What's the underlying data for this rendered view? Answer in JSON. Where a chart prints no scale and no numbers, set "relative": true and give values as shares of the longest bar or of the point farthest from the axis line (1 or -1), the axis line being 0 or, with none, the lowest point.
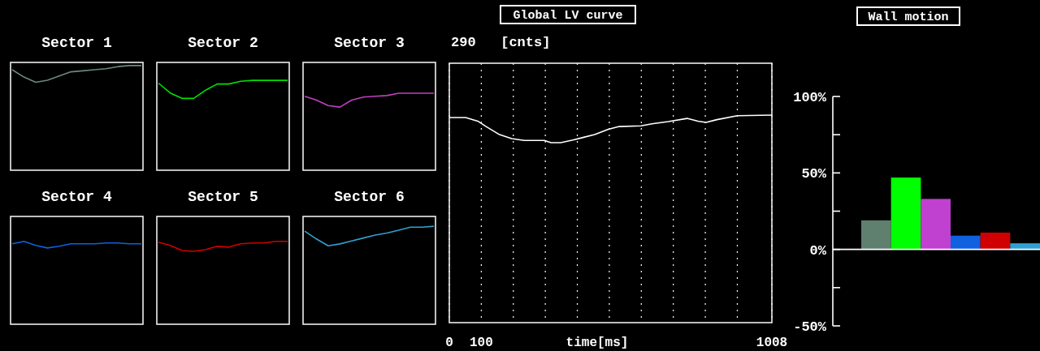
{
  "chart_data": [
    {
      "type": "line",
      "title": "Sector 1",
      "relative": true,
      "categories": [
        null,
        null,
        null,
        null,
        null,
        null,
        null,
        null,
        null,
        null,
        null,
        null
      ],
      "color": "#6a8a7a",
      "values": [
        0.96,
        0.89,
        0.84,
        0.86,
        0.9,
        0.94,
        0.95,
        0.96,
        0.97,
        0.99,
        1,
        1
      ]
    },
    {
      "type": "line",
      "title": "Sector 2",
      "relative": true,
      "categories": [
        null,
        null,
        null,
        null,
        null,
        null,
        null,
        null,
        null,
        null,
        null,
        null
      ],
      "color": "#00e000",
      "values": [
        0.97,
        0.86,
        0.8,
        0.8,
        0.89,
        0.96,
        0.96,
        0.99,
        1,
        1,
        1,
        1
      ]
    },
    {
      "type": "line",
      "title": "Sector 3",
      "relative": true,
      "categories": [
        null,
        null,
        null,
        null,
        null,
        null,
        null,
        null,
        null,
        null,
        null,
        null
      ],
      "color": "#c040c0",
      "values": [
        0.96,
        0.91,
        0.84,
        0.82,
        0.91,
        0.95,
        0.96,
        0.97,
        1,
        1,
        1,
        1
      ]
    },
    {
      "type": "line",
      "title": "Sector 4",
      "relative": true,
      "categories": [
        null,
        null,
        null,
        null,
        null,
        null,
        null,
        null,
        null,
        null,
        null,
        null
      ],
      "color": "#1060e0",
      "values": [
        0.97,
        1,
        0.95,
        0.92,
        0.94,
        0.97,
        0.97,
        0.97,
        0.98,
        0.98,
        0.97,
        0.97
      ]
    },
    {
      "type": "line",
      "title": "Sector 5",
      "relative": true,
      "categories": [
        null,
        null,
        null,
        null,
        null,
        null,
        null,
        null,
        null,
        null,
        null,
        null
      ],
      "color": "#d00000",
      "values": [
        0.99,
        0.95,
        0.89,
        0.88,
        0.9,
        0.94,
        0.93,
        0.97,
        0.98,
        0.98,
        1,
        1
      ]
    },
    {
      "type": "line",
      "title": "Sector 6",
      "relative": true,
      "categories": [
        null,
        null,
        null,
        null,
        null,
        null,
        null,
        null,
        null,
        null,
        null,
        null
      ],
      "color": "#30a0d0",
      "values": [
        0.95,
        0.87,
        0.8,
        0.82,
        0.85,
        0.88,
        0.91,
        0.93,
        0.96,
        0.99,
        0.99,
        1
      ]
    },
    {
      "type": "line",
      "title": "Global LV curve",
      "ylabel": "290   [cnts]",
      "xlabel": "time[ms]",
      "relative": true,
      "grid": "x",
      "color": "#ffffff",
      "x": [
        0,
        51,
        89,
        115,
        157,
        195,
        234,
        297,
        318,
        348,
        386,
        420,
        454,
        497,
        531,
        599,
        633,
        684,
        743,
        777,
        802,
        836,
        900,
        1008
      ],
      "values": [
        0.988,
        0.988,
        0.971,
        0.945,
        0.906,
        0.887,
        0.878,
        0.878,
        0.867,
        0.867,
        0.88,
        0.893,
        0.906,
        0.932,
        0.945,
        0.948,
        0.958,
        0.969,
        0.984,
        0.971,
        0.965,
        0.978,
        0.997,
        1.0
      ],
      "xlim": [
        0,
        1008
      ],
      "xticks": [
        0,
        100,
        {
          "value": 200,
          "label": null
        },
        {
          "value": 300,
          "label": null
        },
        {
          "value": 400,
          "label": null
        },
        {
          "value": 500,
          "label": null
        },
        {
          "value": 600,
          "label": null
        },
        {
          "value": 700,
          "label": null
        },
        {
          "value": 800,
          "label": null
        },
        {
          "value": 900,
          "label": null
        },
        1008
      ]
    },
    {
      "type": "bar",
      "title": "Wall motion",
      "categories": [
        null,
        null,
        null,
        null,
        null,
        null
      ],
      "values": [
        19,
        47,
        33,
        9,
        11,
        4
      ],
      "colors": [
        "#5f7f6f",
        "#00ff00",
        "#c040d0",
        "#1060e0",
        "#d00000",
        "#30a0d0"
      ],
      "ylim": [
        -50,
        100
      ],
      "yticks": [
        {
          "value": -50,
          "label": "-50%"
        },
        {
          "value": -25,
          "label": null
        },
        {
          "value": 0,
          "label": "0%"
        },
        {
          "value": 25,
          "label": null
        },
        {
          "value": 50,
          "label": "50%"
        },
        {
          "value": 75,
          "label": null
        },
        {
          "value": 100,
          "label": "100%"
        }
      ]
    }
  ]
}
